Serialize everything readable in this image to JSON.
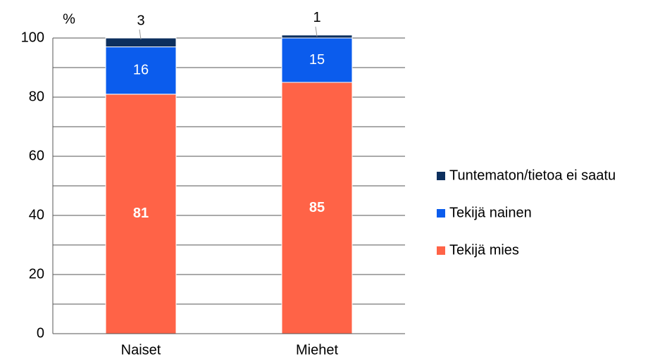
{
  "chart_data": {
    "type": "stacked_bar",
    "y_label": "%",
    "categories": [
      "Naiset",
      "Miehet"
    ],
    "series": [
      {
        "name": "Tekijä mies",
        "color": "#ff6347",
        "values": [
          81,
          85
        ]
      },
      {
        "name": "Tekijä nainen",
        "color": "#0b5ced",
        "values": [
          16,
          15
        ]
      },
      {
        "name": "Tuntematon/tietoa ei saatu",
        "color": "#0c2f5e",
        "values": [
          3,
          1
        ]
      }
    ],
    "ylim": [
      0,
      100
    ],
    "yticks": [
      0,
      20,
      40,
      60,
      80,
      100
    ],
    "y_minor_ticks": [
      10,
      30,
      50,
      70,
      90
    ],
    "grid": true,
    "legend": "right"
  }
}
